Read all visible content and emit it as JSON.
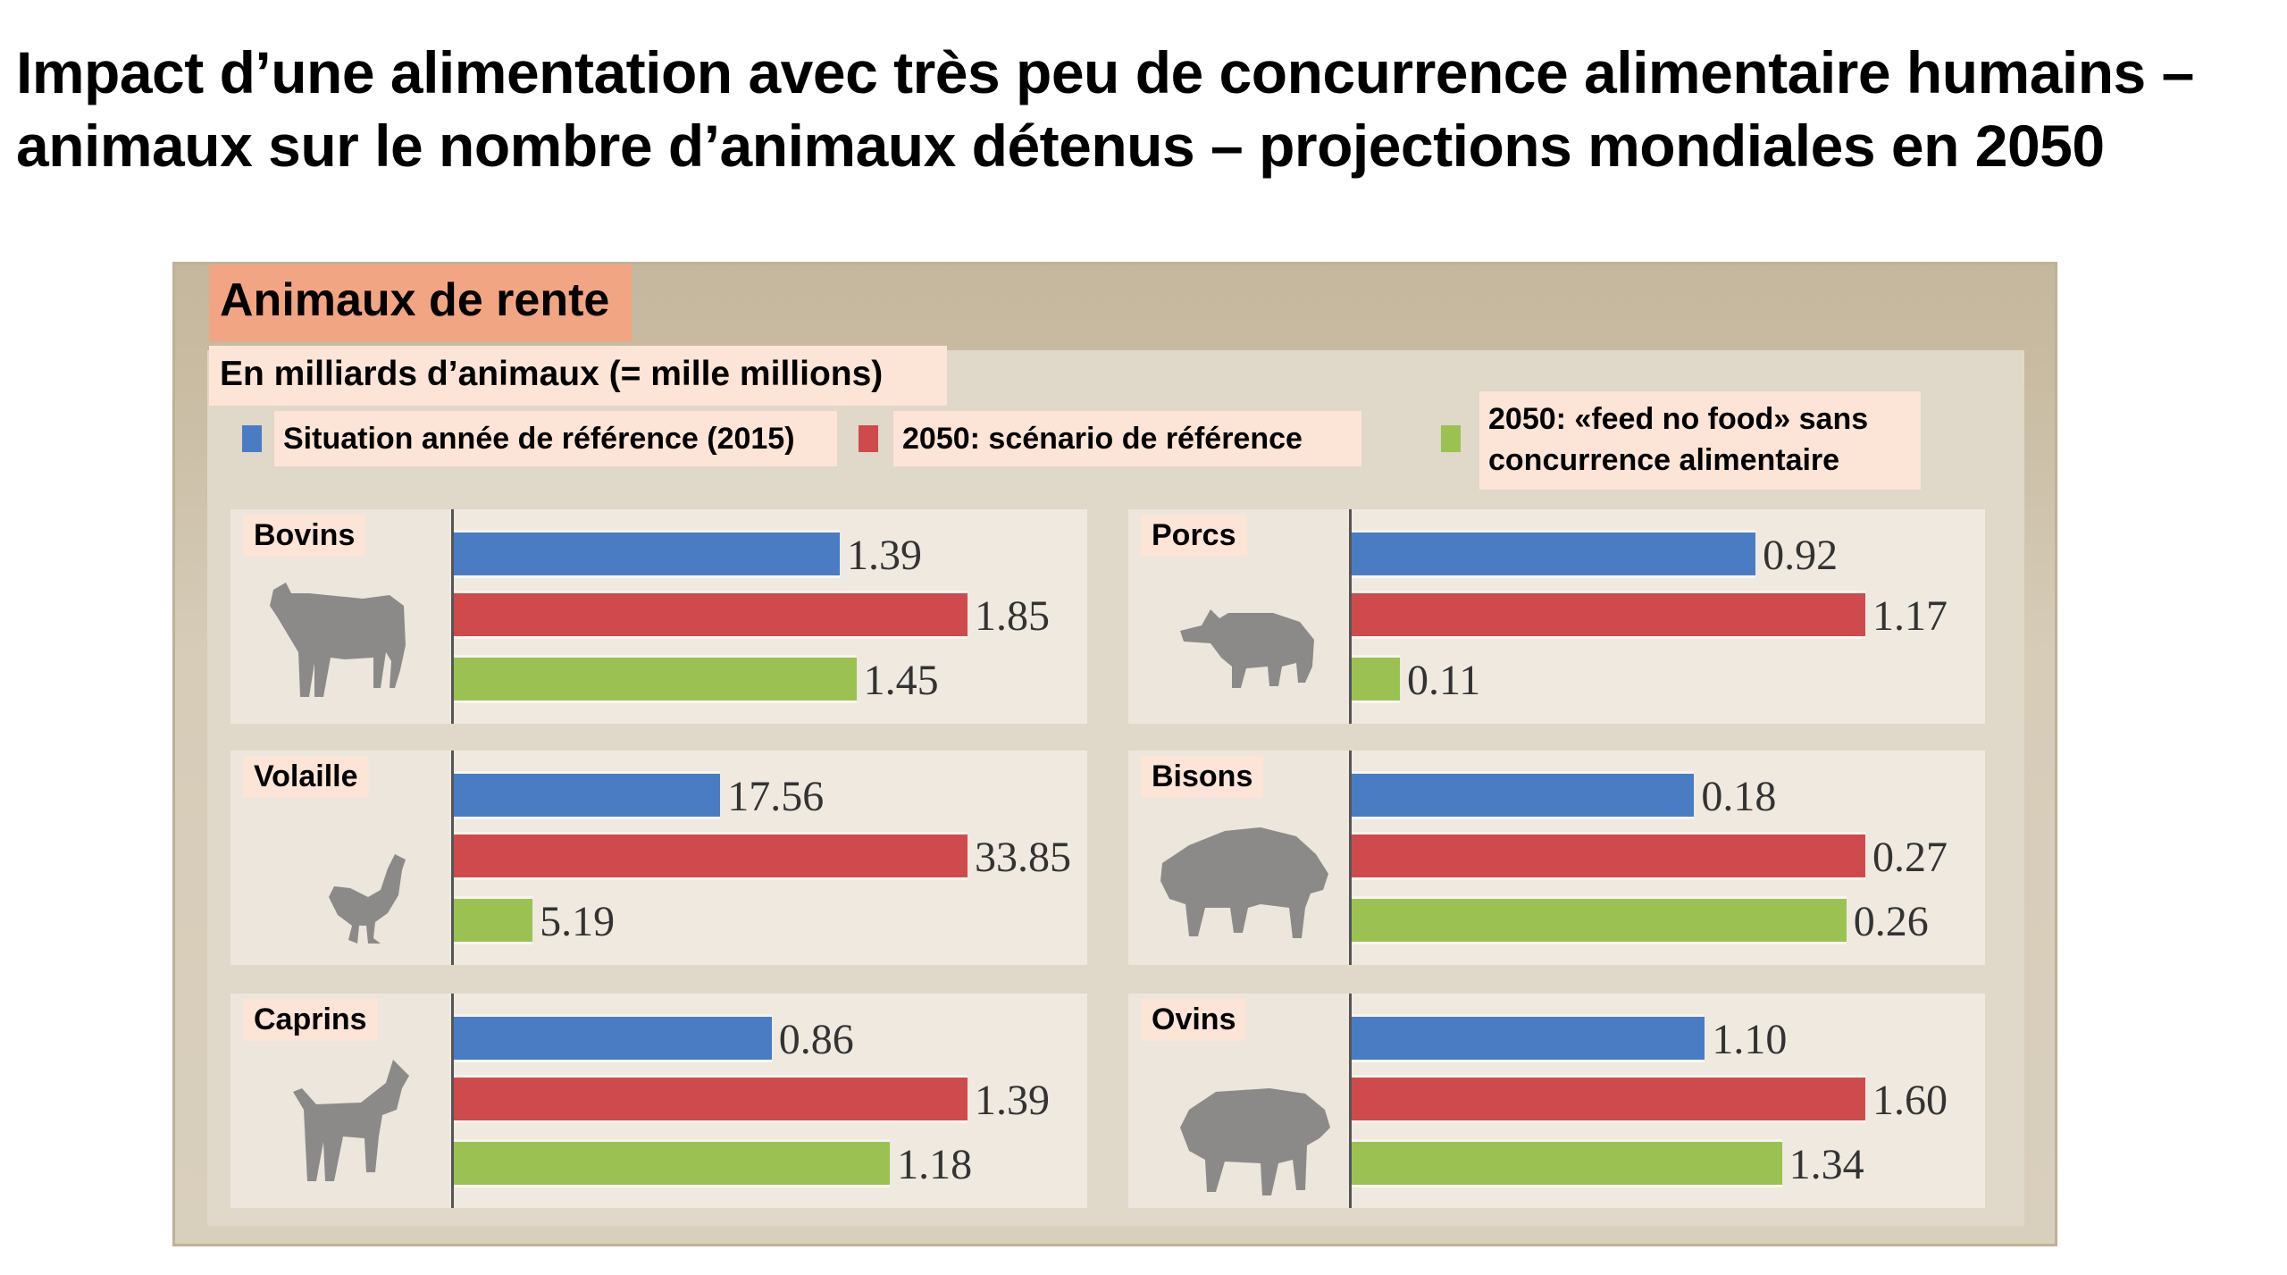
{
  "title": "Impact d’une alimentation avec très peu de concurrence alimentaire humains – animaux sur le nombre d’animaux détenus – projections mondiales en 2050",
  "chart_data": {
    "type": "bar",
    "orientation": "horizontal",
    "title": "Animaux de rente",
    "subtitle": "En milliards d’animaux (= mille millions)",
    "unit": "milliards d’animaux",
    "legend": [
      {
        "name": "Situation année  de référence (2015)",
        "color": "#4a7cc4"
      },
      {
        "name": "2050: scénario de référence",
        "color": "#cf4a4c"
      },
      {
        "name": "2050: «feed no food» sans concurrence alimentaire",
        "color": "#9bc152"
      }
    ],
    "legend_placement": "top",
    "series": [
      {
        "name": "Situation année  de référence (2015)",
        "values": [
          1.39,
          0.92,
          17.56,
          0.18,
          0.86,
          1.1
        ]
      },
      {
        "name": "2050: scénario de référence",
        "values": [
          1.85,
          1.17,
          33.85,
          0.27,
          1.39,
          1.6
        ]
      },
      {
        "name": "2050: «feed no food» sans concurrence alimentaire",
        "values": [
          1.45,
          0.11,
          5.19,
          0.26,
          1.18,
          1.34
        ]
      }
    ],
    "categories": [
      "Bovins",
      "Porcs",
      "Volaille",
      "Bisons",
      "Caprins",
      "Ovins"
    ],
    "panels": [
      {
        "category": "Bovins",
        "icon": "cow-icon",
        "labels": [
          "1.39",
          "1.85",
          "1.45"
        ]
      },
      {
        "category": "Porcs",
        "icon": "pig-icon",
        "labels": [
          "0.92",
          "1.17",
          "0.11"
        ]
      },
      {
        "category": "Volaille",
        "icon": "chicken-icon",
        "labels": [
          "17.56",
          "33.85",
          "5.19"
        ]
      },
      {
        "category": "Bisons",
        "icon": "bison-icon",
        "labels": [
          "0.18",
          "0.27",
          "0.26"
        ]
      },
      {
        "category": "Caprins",
        "icon": "goat-icon",
        "labels": [
          "0.86",
          "1.39",
          "1.18"
        ]
      },
      {
        "category": "Ovins",
        "icon": "sheep-icon",
        "labels": [
          "1.10",
          "1.60",
          "1.34"
        ]
      }
    ],
    "grid": false
  },
  "legend_line1": "2050: «feed no food» sans",
  "legend_line2": "concurrence alimentaire"
}
